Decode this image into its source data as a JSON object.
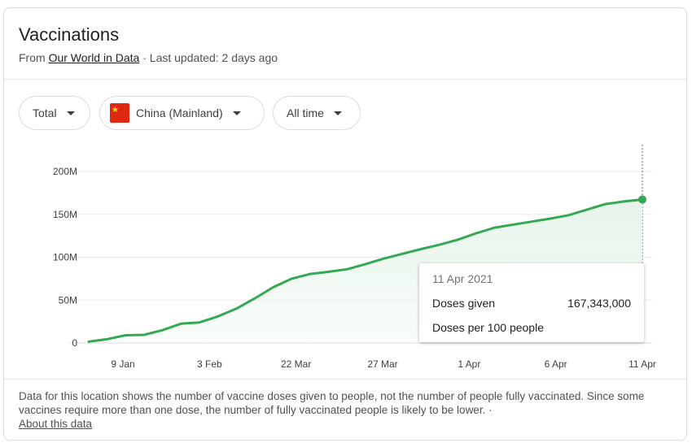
{
  "header": {
    "title": "Vaccinations",
    "from_prefix": "From",
    "source": "Our World in Data",
    "updated": "· Last updated: 2 days ago"
  },
  "filters": {
    "metric": "Total",
    "location": "China (Mainland)",
    "range": "All time"
  },
  "tooltip": {
    "date": "11 Apr 2021",
    "label1": "Doses given",
    "value1": "167,343,000",
    "label2": "Doses per 100 people"
  },
  "footer": {
    "note": "Data for this location shows the number of vaccine doses given to people, not the number of people fully vaccinated. Since some vaccines require more than one dose, the number of fully vaccinated people is likely to be lower.",
    "separator": "·",
    "about": "About this data"
  },
  "colors": {
    "line": "#34a853",
    "fill": "#e6f4ea",
    "grid": "#ebebeb"
  },
  "chart_data": {
    "type": "area",
    "title": "",
    "xlabel": "",
    "ylabel": "",
    "ylim": [
      0,
      200000000
    ],
    "y_ticks": [
      0,
      50000000,
      100000000,
      150000000,
      200000000
    ],
    "y_tick_labels": [
      "0",
      "50M",
      "100M",
      "150M",
      "200M"
    ],
    "x_tick_labels": [
      "9 Jan",
      "3 Feb",
      "22 Mar",
      "27 Mar",
      "1 Apr",
      "6 Apr",
      "11 Apr"
    ],
    "grid": true,
    "series": [
      {
        "values": [
          1500000,
          4500000,
          9000000,
          9500000,
          15000000,
          22500000,
          24000000,
          31000000,
          40000000,
          52000000,
          65000000,
          75000000,
          80500000,
          83000000,
          86000000,
          92000000,
          98500000,
          104000000,
          109500000,
          114500000,
          120500000,
          128000000,
          134500000,
          138000000,
          141500000,
          145000000,
          149000000,
          155500000,
          162000000,
          165000000,
          167343000
        ]
      }
    ]
  }
}
